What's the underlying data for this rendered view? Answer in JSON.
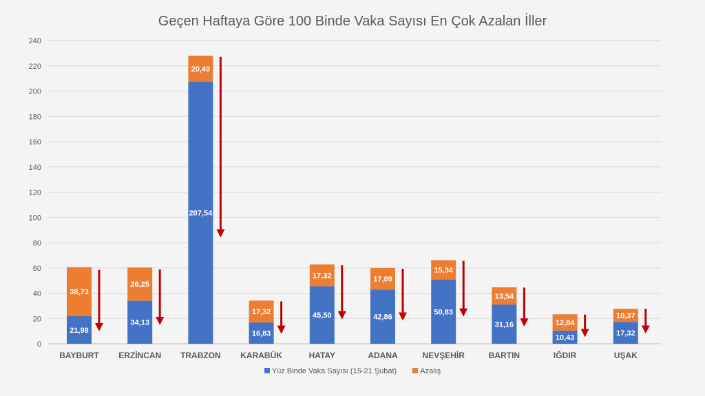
{
  "chart_data": {
    "type": "bar",
    "stacked": true,
    "title": "Geçen Haftaya Göre 100 Binde Vaka Sayısı En Çok Azalan İller",
    "categories": [
      "BAYBURT",
      "ERZİNCAN",
      "TRABZON",
      "KARABÜK",
      "HATAY",
      "ADANA",
      "NEVŞEHİR",
      "BARTIN",
      "IĞDIR",
      "UŞAK"
    ],
    "series": [
      {
        "name": "Yüz Binde Vaka Sayısı (15-21 Şubat)",
        "color": "#4472c4",
        "values": [
          21.98,
          34.13,
          207.54,
          16.83,
          45.5,
          42.86,
          50.83,
          31.16,
          10.43,
          17.32
        ],
        "labels": [
          "21,98",
          "34,13",
          "207,54",
          "16,83",
          "45,50",
          "42,86",
          "50,83",
          "31,16",
          "10,43",
          "17,32"
        ]
      },
      {
        "name": "Azalış",
        "color": "#ed7d31",
        "values": [
          38.73,
          26.25,
          20.49,
          17.32,
          17.32,
          17.09,
          15.34,
          13.54,
          12.84,
          10.37
        ],
        "labels": [
          "38,73",
          "26,25",
          "20,49",
          "17,32",
          "17,32",
          "17,09",
          "15,34",
          "13,54",
          "12,84",
          "10,37"
        ]
      }
    ],
    "ylim": [
      0,
      240
    ],
    "yticks": [
      0,
      20,
      40,
      60,
      80,
      100,
      120,
      140,
      160,
      180,
      200,
      220,
      240
    ],
    "grid": true,
    "legend": "bottom",
    "annotations": "red down arrows beside each bar",
    "arrow_color": "#c00000"
  }
}
